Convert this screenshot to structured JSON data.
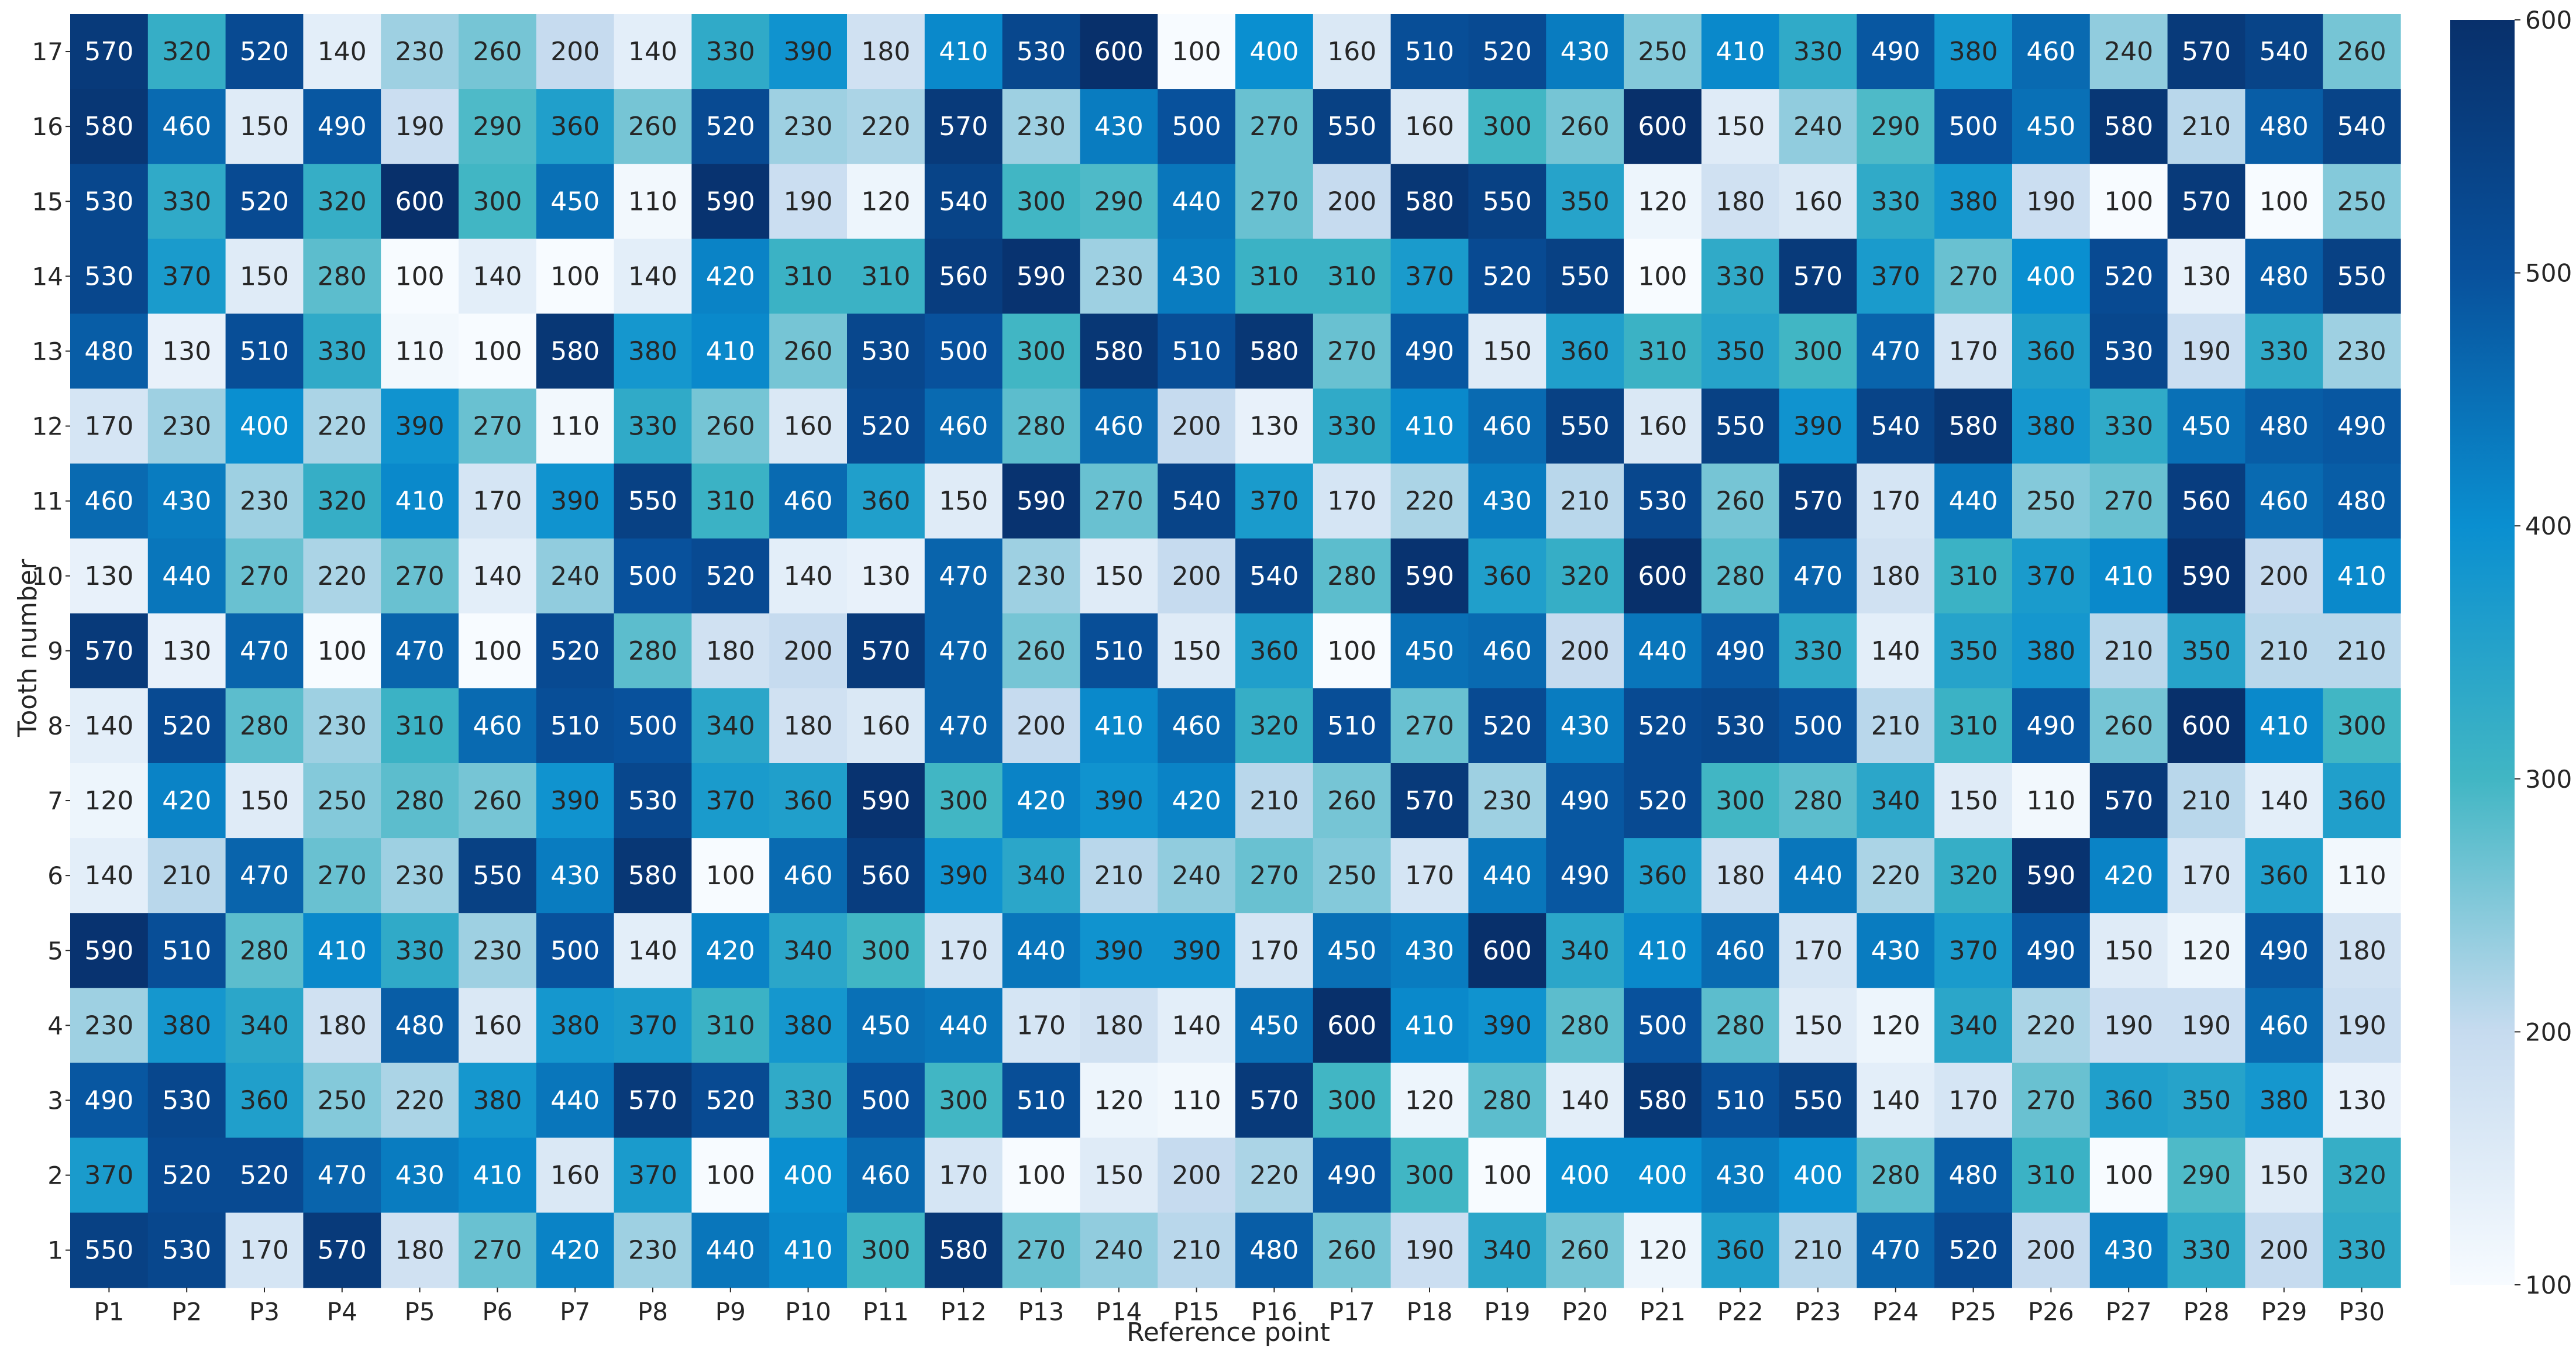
{
  "chart_data": {
    "type": "heatmap",
    "title": "",
    "xlabel": "Reference point",
    "ylabel": "Tooth number",
    "x_categories": [
      "P1",
      "P2",
      "P3",
      "P4",
      "P5",
      "P6",
      "P7",
      "P8",
      "P9",
      "P10",
      "P11",
      "P12",
      "P13",
      "P14",
      "P15",
      "P16",
      "P17",
      "P18",
      "P19",
      "P20",
      "P21",
      "P22",
      "P23",
      "P24",
      "P25",
      "P26",
      "P27",
      "P28",
      "P29",
      "P30"
    ],
    "y_categories": [
      "17",
      "16",
      "15",
      "14",
      "13",
      "12",
      "11",
      "10",
      "9",
      "8",
      "7",
      "6",
      "5",
      "4",
      "3",
      "2",
      "1"
    ],
    "values": [
      [
        570,
        320,
        520,
        140,
        230,
        260,
        200,
        140,
        330,
        390,
        180,
        410,
        530,
        600,
        100,
        400,
        160,
        510,
        520,
        430,
        250,
        410,
        330,
        490,
        380,
        460,
        240,
        570,
        540,
        260
      ],
      [
        580,
        460,
        150,
        490,
        190,
        290,
        360,
        260,
        520,
        230,
        220,
        570,
        230,
        430,
        500,
        270,
        550,
        160,
        300,
        260,
        600,
        150,
        240,
        290,
        500,
        450,
        580,
        210,
        480,
        540
      ],
      [
        530,
        330,
        520,
        320,
        600,
        300,
        450,
        110,
        590,
        190,
        120,
        540,
        300,
        290,
        440,
        270,
        200,
        580,
        550,
        350,
        120,
        180,
        160,
        330,
        380,
        190,
        100,
        570,
        100,
        250
      ],
      [
        530,
        370,
        150,
        280,
        100,
        140,
        100,
        140,
        420,
        310,
        310,
        560,
        590,
        230,
        430,
        310,
        310,
        370,
        520,
        550,
        100,
        330,
        570,
        370,
        270,
        400,
        520,
        130,
        480,
        550
      ],
      [
        480,
        130,
        510,
        330,
        110,
        100,
        580,
        380,
        410,
        260,
        530,
        500,
        300,
        580,
        510,
        580,
        270,
        490,
        150,
        360,
        310,
        350,
        300,
        470,
        170,
        360,
        530,
        190,
        330,
        230
      ],
      [
        170,
        230,
        400,
        220,
        390,
        270,
        110,
        330,
        260,
        160,
        520,
        460,
        280,
        460,
        200,
        130,
        330,
        410,
        460,
        550,
        160,
        550,
        390,
        540,
        580,
        380,
        330,
        450,
        480,
        490
      ],
      [
        460,
        430,
        230,
        320,
        410,
        170,
        390,
        550,
        310,
        460,
        360,
        150,
        590,
        270,
        540,
        370,
        170,
        220,
        430,
        210,
        530,
        260,
        570,
        170,
        440,
        250,
        270,
        560,
        460,
        480
      ],
      [
        130,
        440,
        270,
        220,
        270,
        140,
        240,
        500,
        520,
        140,
        130,
        470,
        230,
        150,
        200,
        540,
        280,
        590,
        360,
        320,
        600,
        280,
        470,
        180,
        310,
        370,
        410,
        590,
        200,
        410
      ],
      [
        570,
        130,
        470,
        100,
        470,
        100,
        520,
        280,
        180,
        200,
        570,
        470,
        260,
        510,
        150,
        360,
        100,
        450,
        460,
        200,
        440,
        490,
        330,
        140,
        350,
        380,
        210,
        350,
        210,
        210
      ],
      [
        140,
        520,
        280,
        230,
        310,
        460,
        510,
        500,
        340,
        180,
        160,
        470,
        200,
        410,
        460,
        320,
        510,
        270,
        520,
        430,
        520,
        530,
        500,
        210,
        310,
        490,
        260,
        600,
        410,
        300
      ],
      [
        120,
        420,
        150,
        250,
        280,
        260,
        390,
        530,
        370,
        360,
        590,
        300,
        420,
        390,
        420,
        210,
        260,
        570,
        230,
        490,
        520,
        300,
        280,
        340,
        150,
        110,
        570,
        210,
        140,
        360
      ],
      [
        140,
        210,
        470,
        270,
        230,
        550,
        430,
        580,
        100,
        460,
        560,
        390,
        340,
        210,
        240,
        270,
        250,
        170,
        440,
        490,
        360,
        180,
        440,
        220,
        320,
        590,
        420,
        170,
        360,
        110
      ],
      [
        590,
        510,
        280,
        410,
        330,
        230,
        500,
        140,
        420,
        340,
        300,
        170,
        440,
        390,
        390,
        170,
        450,
        430,
        600,
        340,
        410,
        460,
        170,
        430,
        370,
        490,
        150,
        120,
        490,
        180
      ],
      [
        230,
        380,
        340,
        180,
        480,
        160,
        380,
        370,
        310,
        380,
        450,
        440,
        170,
        180,
        140,
        450,
        600,
        410,
        390,
        280,
        500,
        280,
        150,
        120,
        340,
        220,
        190,
        190,
        460,
        190
      ],
      [
        490,
        530,
        360,
        250,
        220,
        380,
        440,
        570,
        520,
        330,
        500,
        300,
        510,
        120,
        110,
        570,
        300,
        120,
        280,
        140,
        580,
        510,
        550,
        140,
        170,
        270,
        360,
        350,
        380,
        130
      ],
      [
        370,
        520,
        520,
        470,
        430,
        410,
        160,
        370,
        100,
        400,
        460,
        170,
        100,
        150,
        200,
        220,
        490,
        300,
        100,
        400,
        400,
        430,
        400,
        280,
        480,
        310,
        100,
        290,
        150,
        320
      ],
      [
        550,
        530,
        170,
        570,
        180,
        270,
        420,
        230,
        440,
        410,
        300,
        580,
        270,
        240,
        210,
        480,
        260,
        190,
        340,
        260,
        120,
        360,
        210,
        470,
        520,
        200,
        430,
        330,
        200,
        330
      ]
    ],
    "vmin": 100,
    "vmax": 600,
    "colormap": "Blues",
    "colorbar_ticks": [
      "100",
      "200",
      "300",
      "400",
      "500",
      "600"
    ],
    "colors": {
      "stops": [
        "#f7fbff",
        "#c6dbef",
        "#41b6c4",
        "#0a8fd0",
        "#08519c",
        "#08306b"
      ],
      "label_dark": "#262626",
      "label_light": "#ffffff"
    }
  }
}
